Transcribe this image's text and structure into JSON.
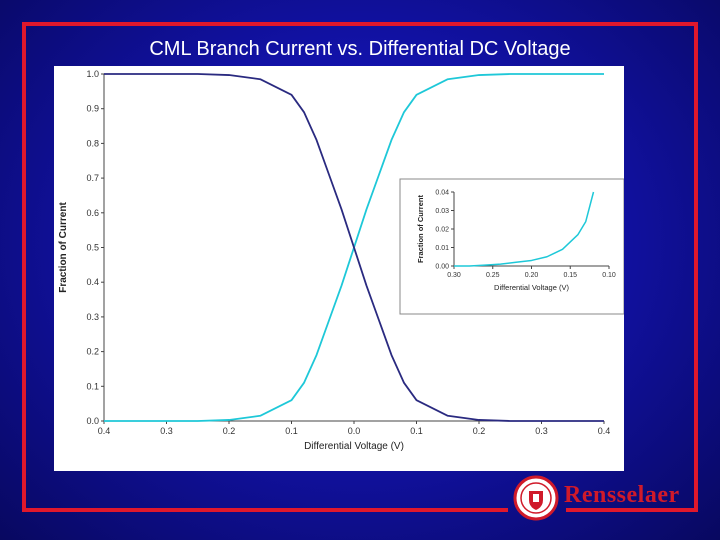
{
  "slide": {
    "title": "CML Branch Current vs. Differential DC Voltage",
    "logo_text": "Rensselaer",
    "colors": {
      "background": "#1414b4",
      "frame": "#e0182c",
      "curve_rising": "#1ec8d8",
      "curve_falling": "#2a2a80"
    }
  },
  "chart_data": [
    {
      "type": "line",
      "title": "",
      "xlabel": "Differential Voltage (V)",
      "ylabel": "Fraction of Current",
      "x_tick_labels": [
        "0.4",
        "0.3",
        "0.2",
        "0.1",
        "0.0",
        "0.1",
        "0.2",
        "0.3",
        "0.4"
      ],
      "y_tick_labels": [
        "0.0",
        "0.1",
        "0.2",
        "0.3",
        "0.4",
        "0.5",
        "0.6",
        "0.7",
        "0.8",
        "0.9",
        "1.0"
      ],
      "xlim": [
        -0.4,
        0.4
      ],
      "ylim": [
        0,
        1.0
      ],
      "grid": false,
      "series": [
        {
          "color": "#1ec8d8",
          "x": [
            -0.4,
            -0.3,
            -0.25,
            -0.2,
            -0.15,
            -0.1,
            -0.08,
            -0.06,
            -0.04,
            -0.02,
            0.0,
            0.02,
            0.04,
            0.06,
            0.08,
            0.1,
            0.15,
            0.2,
            0.25,
            0.3,
            0.4
          ],
          "y": [
            0.0,
            0.0,
            0.0,
            0.003,
            0.015,
            0.06,
            0.11,
            0.19,
            0.29,
            0.39,
            0.5,
            0.61,
            0.71,
            0.81,
            0.89,
            0.94,
            0.985,
            0.997,
            1.0,
            1.0,
            1.0
          ]
        },
        {
          "color": "#2a2a80",
          "x": [
            -0.4,
            -0.3,
            -0.25,
            -0.2,
            -0.15,
            -0.1,
            -0.08,
            -0.06,
            -0.04,
            -0.02,
            0.0,
            0.02,
            0.04,
            0.06,
            0.08,
            0.1,
            0.15,
            0.2,
            0.25,
            0.3,
            0.4
          ],
          "y": [
            1.0,
            1.0,
            1.0,
            0.997,
            0.985,
            0.94,
            0.89,
            0.81,
            0.71,
            0.61,
            0.5,
            0.39,
            0.29,
            0.19,
            0.11,
            0.06,
            0.015,
            0.003,
            0.0,
            0.0,
            0.0
          ]
        }
      ]
    },
    {
      "type": "line",
      "title": "",
      "xlabel": "Differential Voltage (V)",
      "ylabel": "Fraction of Current",
      "x_tick_labels": [
        "0.30",
        "0.25",
        "0.20",
        "0.15",
        "0.10"
      ],
      "y_tick_labels": [
        "0.00",
        "0.01",
        "0.02",
        "0.03",
        "0.04"
      ],
      "xlim": [
        -0.3,
        -0.1
      ],
      "ylim": [
        0,
        0.04
      ],
      "grid": false,
      "series": [
        {
          "color": "#1ec8d8",
          "x": [
            -0.3,
            -0.28,
            -0.26,
            -0.24,
            -0.22,
            -0.2,
            -0.18,
            -0.16,
            -0.14,
            -0.13,
            -0.12
          ],
          "y": [
            0.0,
            0.0,
            0.0005,
            0.001,
            0.002,
            0.003,
            0.005,
            0.009,
            0.017,
            0.024,
            0.04
          ]
        }
      ]
    }
  ]
}
